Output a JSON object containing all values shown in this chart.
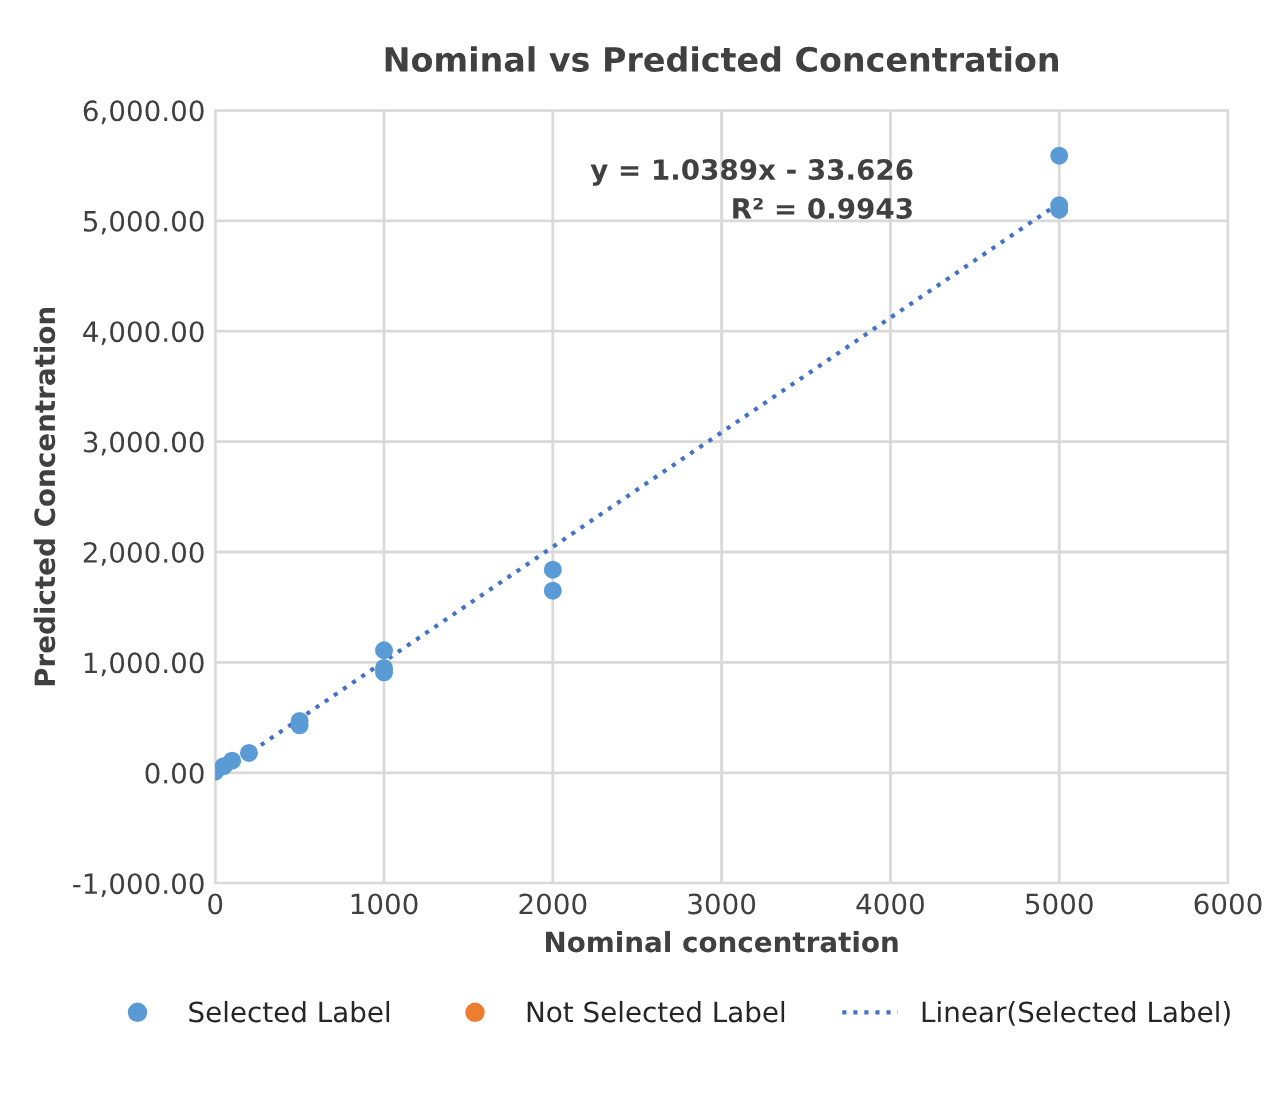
{
  "chart_data": {
    "type": "scatter",
    "title": "Nominal vs Predicted Concentration",
    "xlabel": "Nominal concentration",
    "ylabel": "Predicted Concentration",
    "xlim": [
      0,
      6000
    ],
    "xticks": [
      0,
      1000,
      2000,
      3000,
      4000,
      5000,
      6000
    ],
    "ylim": [
      -1000,
      6000
    ],
    "yticks": [
      {
        "value": -1000,
        "label": "-1,000.00"
      },
      {
        "value": 0,
        "label": "0.00"
      },
      {
        "value": 1000,
        "label": "1,000.00"
      },
      {
        "value": 2000,
        "label": "2,000.00"
      },
      {
        "value": 3000,
        "label": "3,000.00"
      },
      {
        "value": 4000,
        "label": "4,000.00"
      },
      {
        "value": 5000,
        "label": "5,000.00"
      },
      {
        "value": 6000,
        "label": "6,000.00"
      }
    ],
    "grid": true,
    "legend": "bottom",
    "marker": "circle",
    "series": [
      {
        "name": "Selected Label",
        "color": "#5b9bd5",
        "x": [
          0,
          50,
          100,
          200,
          500,
          500,
          1000,
          1000,
          1000,
          2000,
          2000,
          5000,
          5000,
          5000
        ],
        "values": [
          10,
          60,
          110,
          180,
          430,
          470,
          910,
          950,
          1110,
          1650,
          1840,
          5100,
          5140,
          5590
        ]
      },
      {
        "name": "Not Selected Label",
        "color": "#ed7d31"
      },
      {
        "name": "Linear(Selected Label)",
        "type": "line",
        "line_style": "dotted",
        "marker": "none",
        "color": "#4472c4",
        "x": [
          0,
          5000
        ],
        "values": [
          -30,
          5160
        ]
      }
    ],
    "annotations": [
      "y = 1.0389x - 33.626",
      "R² = 0.9943"
    ]
  }
}
